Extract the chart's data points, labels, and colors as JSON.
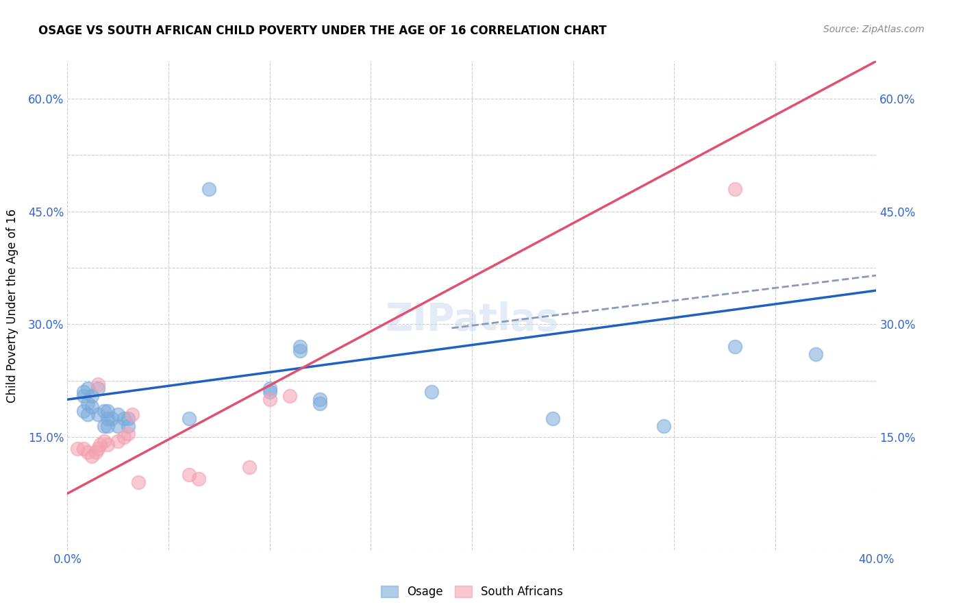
{
  "title": "OSAGE VS SOUTH AFRICAN CHILD POVERTY UNDER THE AGE OF 16 CORRELATION CHART",
  "source": "Source: ZipAtlas.com",
  "xlabel": "",
  "ylabel": "Child Poverty Under the Age of 16",
  "xlim": [
    0.0,
    0.4
  ],
  "ylim": [
    0.0,
    0.65
  ],
  "xticks": [
    0.0,
    0.05,
    0.1,
    0.15,
    0.2,
    0.25,
    0.3,
    0.35,
    0.4
  ],
  "xtick_labels": [
    "0.0%",
    "",
    "",
    "",
    "",
    "",
    "",
    "",
    "40.0%"
  ],
  "ytick_labels_left": [
    "",
    "15.0%",
    "",
    "30.0%",
    "",
    "45.0%",
    "",
    "60.0%"
  ],
  "ytick_positions_left": [
    0.0,
    0.15,
    0.225,
    0.3,
    0.375,
    0.45,
    0.525,
    0.6
  ],
  "watermark": "ZIPatlas",
  "osage_color": "#7aabdb",
  "south_african_color": "#f4a0b0",
  "osage_line_color": "#2060c0",
  "south_african_line_color": "#e05070",
  "osage_scatter": [
    [
      0.008,
      0.205
    ],
    [
      0.008,
      0.21
    ],
    [
      0.01,
      0.215
    ],
    [
      0.012,
      0.205
    ],
    [
      0.015,
      0.215
    ],
    [
      0.01,
      0.195
    ],
    [
      0.012,
      0.19
    ],
    [
      0.008,
      0.185
    ],
    [
      0.01,
      0.18
    ],
    [
      0.015,
      0.18
    ],
    [
      0.018,
      0.185
    ],
    [
      0.02,
      0.185
    ],
    [
      0.02,
      0.175
    ],
    [
      0.025,
      0.18
    ],
    [
      0.022,
      0.175
    ],
    [
      0.018,
      0.165
    ],
    [
      0.02,
      0.165
    ],
    [
      0.025,
      0.165
    ],
    [
      0.028,
      0.175
    ],
    [
      0.03,
      0.175
    ],
    [
      0.03,
      0.165
    ],
    [
      0.06,
      0.175
    ],
    [
      0.1,
      0.215
    ],
    [
      0.1,
      0.21
    ],
    [
      0.115,
      0.27
    ],
    [
      0.115,
      0.265
    ],
    [
      0.125,
      0.2
    ],
    [
      0.125,
      0.195
    ],
    [
      0.18,
      0.21
    ],
    [
      0.24,
      0.175
    ],
    [
      0.295,
      0.165
    ],
    [
      0.33,
      0.27
    ],
    [
      0.37,
      0.26
    ],
    [
      0.07,
      0.48
    ]
  ],
  "south_african_scatter": [
    [
      0.005,
      0.135
    ],
    [
      0.008,
      0.135
    ],
    [
      0.01,
      0.13
    ],
    [
      0.012,
      0.125
    ],
    [
      0.014,
      0.13
    ],
    [
      0.015,
      0.135
    ],
    [
      0.016,
      0.14
    ],
    [
      0.018,
      0.145
    ],
    [
      0.02,
      0.14
    ],
    [
      0.025,
      0.145
    ],
    [
      0.028,
      0.15
    ],
    [
      0.03,
      0.155
    ],
    [
      0.032,
      0.18
    ],
    [
      0.035,
      0.09
    ],
    [
      0.06,
      0.1
    ],
    [
      0.065,
      0.095
    ],
    [
      0.09,
      0.11
    ],
    [
      0.1,
      0.2
    ],
    [
      0.11,
      0.205
    ],
    [
      0.33,
      0.48
    ],
    [
      0.015,
      0.22
    ]
  ],
  "osage_trendline": [
    [
      0.0,
      0.2
    ],
    [
      0.4,
      0.345
    ]
  ],
  "sa_trendline": [
    [
      0.0,
      0.075
    ],
    [
      0.4,
      0.65
    ]
  ],
  "sa_trendline_dashed": [
    [
      0.19,
      0.295
    ],
    [
      0.4,
      0.365
    ]
  ]
}
